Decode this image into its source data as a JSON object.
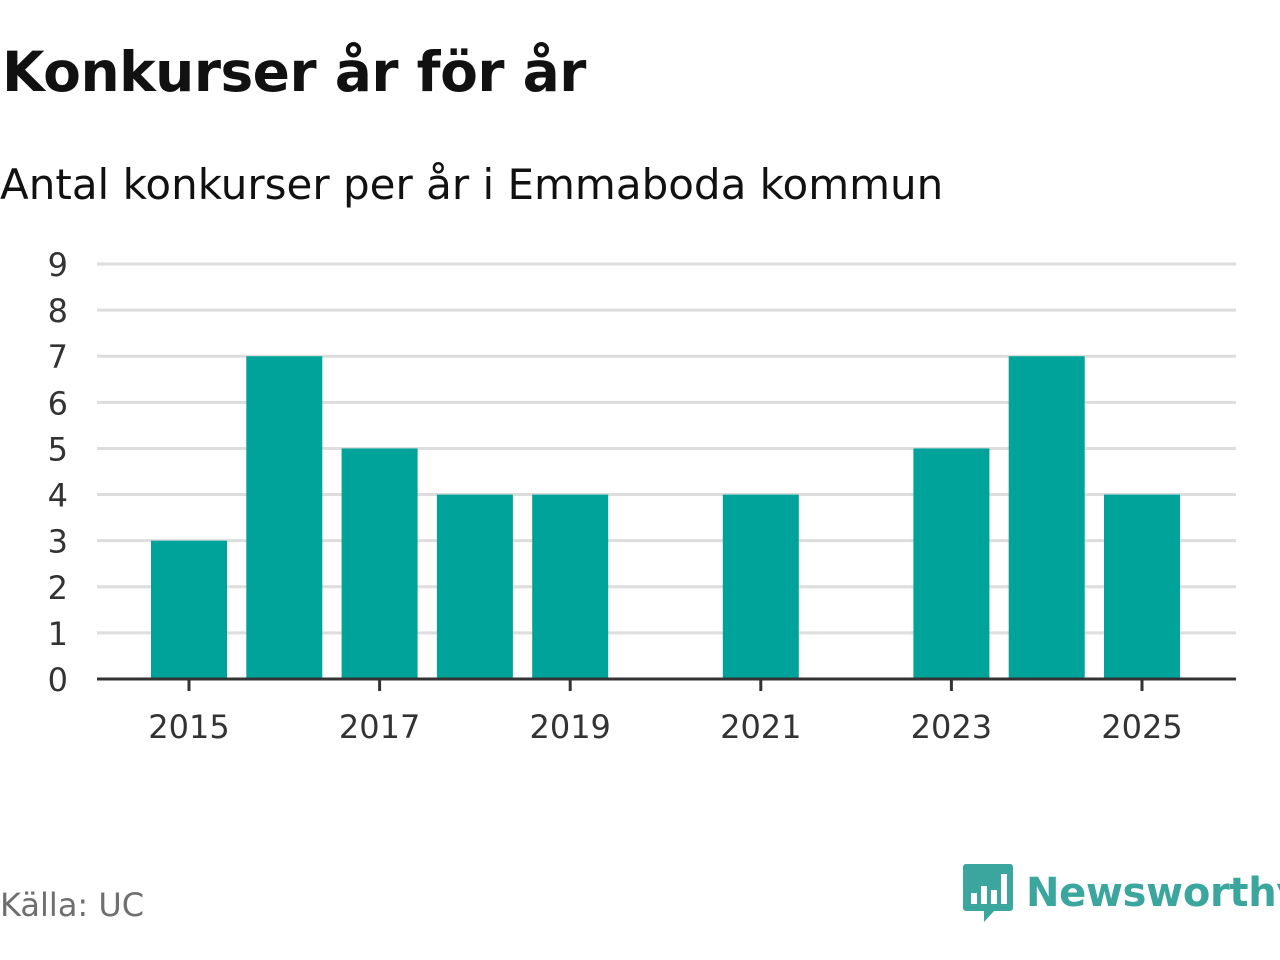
{
  "header": {
    "title": "Konkurser år för år",
    "subtitle": "Antal konkurser per år i Emmaboda kommun"
  },
  "footer": {
    "source": "Källa: UC",
    "logo_text": "Newsworthy"
  },
  "colors": {
    "bar": "#00a39a",
    "grid": "#dddddd",
    "axis": "#333333",
    "brand": "#3aa69d"
  },
  "chart_data": {
    "type": "bar",
    "title": "Konkurser år för år",
    "subtitle": "Antal konkurser per år i Emmaboda kommun",
    "categories": [
      2015,
      2016,
      2017,
      2018,
      2019,
      2020,
      2021,
      2022,
      2023,
      2024,
      2025
    ],
    "values": [
      3,
      7,
      5,
      4,
      4,
      0,
      4,
      0,
      5,
      7,
      4
    ],
    "x_tick_labels": [
      "2015",
      "2017",
      "2019",
      "2021",
      "2023",
      "2025"
    ],
    "y_tick_labels": [
      "0",
      "1",
      "2",
      "3",
      "4",
      "5",
      "6",
      "7",
      "8",
      "9"
    ],
    "ylim": [
      0,
      9
    ],
    "xlabel": "",
    "ylabel": "",
    "grid": true,
    "legend": "none"
  }
}
